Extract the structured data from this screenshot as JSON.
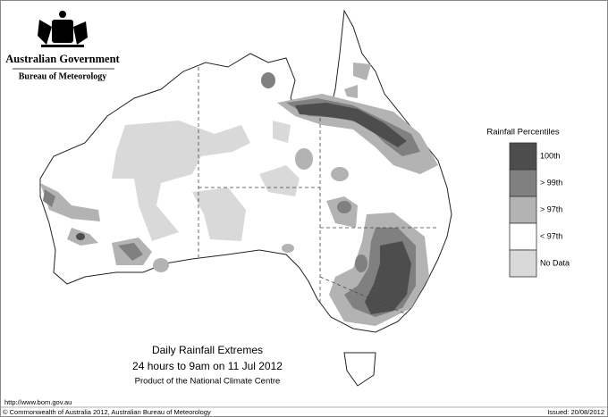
{
  "header": {
    "organisation": "Australian Government",
    "department": "Bureau of Meteorology"
  },
  "title": {
    "heading": "Daily Rainfall Extremes",
    "period": "24 hours to 9am on 11 Jul 2012",
    "product": "Product of the National Climate Centre"
  },
  "legend": {
    "title": "Rainfall Percentiles",
    "items": [
      {
        "label": "100th",
        "color": "#4d4d4d"
      },
      {
        "label": "> 99th",
        "color": "#808080"
      },
      {
        "label": "> 97th",
        "color": "#b3b3b3"
      },
      {
        "label": "< 97th",
        "color": "#ffffff"
      },
      {
        "label": "No Data",
        "color": "#d9d9d9"
      }
    ]
  },
  "footer": {
    "url": "http://www.bom.gov.au",
    "copyright": "© Commonwealth of Australia 2012, Australian Bureau of Meteorology",
    "issued": "Issued: 20/08/2012"
  }
}
